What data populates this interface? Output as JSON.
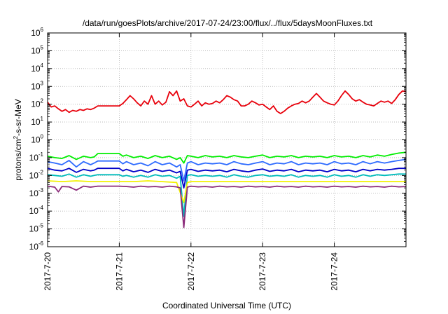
{
  "chart_data": {
    "type": "line",
    "title": "/data/run/goesPlots/archive/2017-07-24/23:00/flux/../flux/5daysMoonFluxes.txt",
    "xlabel": "Coordinated Universal Time (UTC)",
    "ylabel": "protons/cm2-s-sr-MeV",
    "ylabel_parts": {
      "pre": "protons/cm",
      "sup": "2",
      "post": "-s-sr-MeV"
    },
    "yscale": "log",
    "ylim": [
      1e-06,
      1000000.0
    ],
    "xlim_days": [
      0,
      5
    ],
    "grid": true,
    "legend": "none",
    "y_ticks": [
      {
        "base": "10",
        "exp": "-6",
        "value": 1e-06
      },
      {
        "base": "10",
        "exp": "-5",
        "value": 1e-05
      },
      {
        "base": "10",
        "exp": "-4",
        "value": 0.0001
      },
      {
        "base": "10",
        "exp": "-3",
        "value": 0.001
      },
      {
        "base": "10",
        "exp": "-2",
        "value": 0.01
      },
      {
        "base": "10",
        "exp": "-1",
        "value": 0.1
      },
      {
        "base": "10",
        "exp": "0",
        "value": 1.0
      },
      {
        "base": "10",
        "exp": "1",
        "value": 10.0
      },
      {
        "base": "10",
        "exp": "2",
        "value": 100.0
      },
      {
        "base": "10",
        "exp": "3",
        "value": 1000.0
      },
      {
        "base": "10",
        "exp": "4",
        "value": 10000.0
      },
      {
        "base": "10",
        "exp": "5",
        "value": 100000.0
      },
      {
        "base": "10",
        "exp": "6",
        "value": 1000000.0
      }
    ],
    "x_ticks": [
      "2017-7-20",
      "2017-7-21",
      "2017-7-22",
      "2017-7-23",
      "2017-7-24"
    ],
    "series": [
      {
        "color": "#e8000b",
        "x": [
          0.0,
          0.05,
          0.1,
          0.15,
          0.2,
          0.25,
          0.3,
          0.35,
          0.4,
          0.45,
          0.5,
          0.55,
          0.6,
          0.65,
          0.7,
          1.0,
          1.05,
          1.1,
          1.15,
          1.2,
          1.25,
          1.3,
          1.35,
          1.4,
          1.45,
          1.5,
          1.55,
          1.6,
          1.65,
          1.7,
          1.75,
          1.8,
          1.85,
          1.9,
          1.95,
          2.0,
          2.05,
          2.1,
          2.15,
          2.2,
          2.25,
          2.3,
          2.35,
          2.4,
          2.45,
          2.5,
          2.55,
          2.6,
          2.65,
          2.7,
          2.75,
          2.8,
          2.85,
          2.9,
          2.95,
          3.0,
          3.05,
          3.1,
          3.15,
          3.2,
          3.25,
          3.3,
          3.35,
          3.4,
          3.45,
          3.5,
          3.55,
          3.6,
          3.65,
          3.7,
          3.75,
          3.8,
          3.85,
          3.9,
          3.95,
          4.0,
          4.05,
          4.1,
          4.15,
          4.2,
          4.25,
          4.3,
          4.35,
          4.4,
          4.45,
          4.5,
          4.55,
          4.6,
          4.65,
          4.7,
          4.75,
          4.8,
          4.85,
          4.9,
          4.95,
          5.0
        ],
        "y": [
          130,
          70,
          80,
          55,
          40,
          50,
          35,
          45,
          40,
          50,
          45,
          55,
          50,
          60,
          80,
          80,
          110,
          180,
          300,
          200,
          120,
          80,
          150,
          100,
          300,
          100,
          150,
          90,
          130,
          500,
          300,
          550,
          150,
          200,
          80,
          70,
          100,
          150,
          80,
          120,
          100,
          110,
          150,
          120,
          180,
          300,
          250,
          180,
          150,
          80,
          80,
          100,
          150,
          120,
          90,
          100,
          70,
          50,
          80,
          40,
          30,
          40,
          60,
          80,
          100,
          110,
          150,
          120,
          150,
          250,
          400,
          250,
          150,
          120,
          100,
          90,
          150,
          300,
          550,
          350,
          200,
          150,
          180,
          130,
          100,
          90,
          80,
          110,
          150,
          130,
          150,
          110,
          180,
          350,
          550,
          500
        ]
      },
      {
        "color": "#00ee00",
        "x": [
          0.0,
          0.1,
          0.2,
          0.3,
          0.4,
          0.5,
          0.6,
          0.65,
          0.7,
          1.0,
          1.05,
          1.1,
          1.2,
          1.3,
          1.4,
          1.5,
          1.6,
          1.7,
          1.8,
          1.85,
          1.9,
          1.95,
          2.0,
          2.1,
          2.2,
          2.3,
          2.4,
          2.5,
          2.6,
          2.7,
          2.8,
          2.9,
          3.0,
          3.1,
          3.2,
          3.3,
          3.4,
          3.5,
          3.6,
          3.7,
          3.8,
          3.9,
          4.0,
          4.1,
          4.2,
          4.3,
          4.4,
          4.5,
          4.6,
          4.7,
          4.8,
          4.9,
          5.0
        ],
        "y": [
          0.12,
          0.1,
          0.09,
          0.13,
          0.08,
          0.12,
          0.1,
          0.11,
          0.17,
          0.17,
          0.12,
          0.14,
          0.1,
          0.12,
          0.09,
          0.13,
          0.1,
          0.12,
          0.08,
          0.1,
          0.05,
          0.13,
          0.12,
          0.1,
          0.13,
          0.11,
          0.12,
          0.1,
          0.13,
          0.11,
          0.1,
          0.12,
          0.14,
          0.1,
          0.12,
          0.11,
          0.13,
          0.1,
          0.12,
          0.11,
          0.12,
          0.1,
          0.13,
          0.11,
          0.12,
          0.1,
          0.13,
          0.11,
          0.14,
          0.12,
          0.15,
          0.18,
          0.2
        ]
      },
      {
        "color": "#2e6bff",
        "x": [
          0.0,
          0.1,
          0.2,
          0.3,
          0.4,
          0.5,
          0.6,
          0.65,
          0.7,
          1.0,
          1.05,
          1.1,
          1.2,
          1.3,
          1.4,
          1.5,
          1.6,
          1.7,
          1.8,
          1.85,
          1.9,
          1.95,
          2.0,
          2.1,
          2.2,
          2.3,
          2.4,
          2.5,
          2.6,
          2.7,
          2.8,
          2.9,
          3.0,
          3.1,
          3.2,
          3.3,
          3.4,
          3.5,
          3.6,
          3.7,
          3.8,
          3.9,
          4.0,
          4.1,
          4.2,
          4.3,
          4.4,
          4.5,
          4.6,
          4.7,
          4.8,
          4.9,
          5.0
        ],
        "y": [
          0.06,
          0.05,
          0.04,
          0.07,
          0.03,
          0.06,
          0.04,
          0.05,
          0.065,
          0.065,
          0.045,
          0.06,
          0.04,
          0.05,
          0.035,
          0.06,
          0.04,
          0.05,
          0.03,
          0.04,
          0.005,
          0.05,
          0.06,
          0.04,
          0.05,
          0.045,
          0.05,
          0.04,
          0.06,
          0.045,
          0.04,
          0.05,
          0.06,
          0.04,
          0.05,
          0.045,
          0.06,
          0.04,
          0.05,
          0.045,
          0.05,
          0.04,
          0.06,
          0.045,
          0.05,
          0.04,
          0.06,
          0.045,
          0.06,
          0.05,
          0.06,
          0.07,
          0.08
        ]
      },
      {
        "color": "#0000c8",
        "x": [
          0.0,
          0.1,
          0.2,
          0.3,
          0.4,
          0.5,
          0.6,
          0.65,
          0.7,
          1.0,
          1.05,
          1.1,
          1.2,
          1.3,
          1.4,
          1.5,
          1.6,
          1.7,
          1.8,
          1.85,
          1.9,
          1.95,
          2.0,
          2.1,
          2.2,
          2.3,
          2.4,
          2.5,
          2.6,
          2.7,
          2.8,
          2.9,
          3.0,
          3.1,
          3.2,
          3.3,
          3.4,
          3.5,
          3.6,
          3.7,
          3.8,
          3.9,
          4.0,
          4.1,
          4.2,
          4.3,
          4.4,
          4.5,
          4.6,
          4.7,
          4.8,
          4.9,
          5.0
        ],
        "y": [
          0.025,
          0.02,
          0.018,
          0.025,
          0.015,
          0.022,
          0.018,
          0.02,
          0.025,
          0.025,
          0.018,
          0.022,
          0.016,
          0.02,
          0.015,
          0.022,
          0.017,
          0.02,
          0.014,
          0.017,
          0.002,
          0.02,
          0.022,
          0.017,
          0.02,
          0.018,
          0.02,
          0.016,
          0.022,
          0.018,
          0.016,
          0.02,
          0.023,
          0.017,
          0.02,
          0.018,
          0.022,
          0.016,
          0.02,
          0.018,
          0.02,
          0.016,
          0.022,
          0.018,
          0.02,
          0.016,
          0.022,
          0.018,
          0.022,
          0.02,
          0.022,
          0.025,
          0.025
        ]
      },
      {
        "color": "#00bcbc",
        "x": [
          0.0,
          0.1,
          0.2,
          0.3,
          0.4,
          0.5,
          0.6,
          0.65,
          0.7,
          1.0,
          1.05,
          1.1,
          1.2,
          1.3,
          1.4,
          1.5,
          1.6,
          1.7,
          1.8,
          1.85,
          1.9,
          1.95,
          2.0,
          2.1,
          2.2,
          2.3,
          2.4,
          2.5,
          2.6,
          2.7,
          2.8,
          2.9,
          3.0,
          3.1,
          3.2,
          3.3,
          3.4,
          3.5,
          3.6,
          3.7,
          3.8,
          3.9,
          4.0,
          4.1,
          4.2,
          4.3,
          4.4,
          4.5,
          4.6,
          4.7,
          4.8,
          4.9,
          5.0
        ],
        "y": [
          0.011,
          0.01,
          0.009,
          0.012,
          0.008,
          0.011,
          0.009,
          0.01,
          0.011,
          0.011,
          0.009,
          0.01,
          0.008,
          0.01,
          0.008,
          0.011,
          0.009,
          0.01,
          0.007,
          0.009,
          5e-05,
          0.01,
          0.011,
          0.009,
          0.01,
          0.009,
          0.01,
          0.008,
          0.011,
          0.009,
          0.008,
          0.01,
          0.011,
          0.009,
          0.01,
          0.009,
          0.011,
          0.008,
          0.01,
          0.009,
          0.01,
          0.008,
          0.011,
          0.009,
          0.01,
          0.008,
          0.011,
          0.009,
          0.011,
          0.01,
          0.011,
          0.012,
          0.012
        ]
      },
      {
        "color": "#f2f200",
        "x": [
          0.0,
          0.2,
          0.4,
          0.6,
          0.7,
          1.0,
          1.2,
          1.4,
          1.6,
          1.8,
          1.9,
          1.95,
          2.0,
          2.2,
          2.4,
          2.6,
          2.8,
          3.0,
          3.2,
          3.4,
          3.6,
          3.8,
          4.0,
          4.2,
          4.4,
          4.6,
          4.8,
          5.0
        ],
        "y": [
          0.005,
          0.0045,
          0.005,
          0.0045,
          0.0045,
          0.0045,
          0.0045,
          0.005,
          0.0045,
          0.004,
          0.0003,
          0.004,
          0.0045,
          0.0045,
          0.0045,
          0.0045,
          0.0045,
          0.0045,
          0.0045,
          0.0045,
          0.0045,
          0.0045,
          0.0045,
          0.0045,
          0.0045,
          0.0045,
          0.0045,
          0.0045
        ]
      },
      {
        "color": "#8b2a7a",
        "x": [
          0.0,
          0.1,
          0.15,
          0.2,
          0.3,
          0.4,
          0.5,
          0.6,
          0.7,
          1.0,
          1.1,
          1.2,
          1.3,
          1.4,
          1.5,
          1.6,
          1.7,
          1.8,
          1.85,
          1.9,
          1.95,
          2.0,
          2.1,
          2.2,
          2.3,
          2.4,
          2.5,
          2.6,
          2.7,
          2.8,
          2.9,
          3.0,
          3.1,
          3.2,
          3.3,
          3.4,
          3.5,
          3.6,
          3.7,
          3.8,
          3.9,
          4.0,
          4.1,
          4.2,
          4.3,
          4.4,
          4.5,
          4.6,
          4.7,
          4.8,
          4.9,
          5.0
        ],
        "y": [
          0.0025,
          0.0022,
          0.0012,
          0.0024,
          0.0023,
          0.0015,
          0.0025,
          0.0022,
          0.0025,
          0.0025,
          0.0024,
          0.0022,
          0.0025,
          0.0023,
          0.0024,
          0.0022,
          0.0025,
          0.0023,
          0.002,
          1.2e-05,
          0.0022,
          0.0025,
          0.0023,
          0.0024,
          0.0022,
          0.0025,
          0.0023,
          0.0024,
          0.0022,
          0.0025,
          0.0023,
          0.0024,
          0.0022,
          0.0025,
          0.0023,
          0.0024,
          0.0022,
          0.0025,
          0.0023,
          0.0024,
          0.0022,
          0.0025,
          0.0023,
          0.0024,
          0.0022,
          0.0025,
          0.0023,
          0.0024,
          0.0022,
          0.0025,
          0.0023,
          0.0024
        ]
      }
    ]
  }
}
